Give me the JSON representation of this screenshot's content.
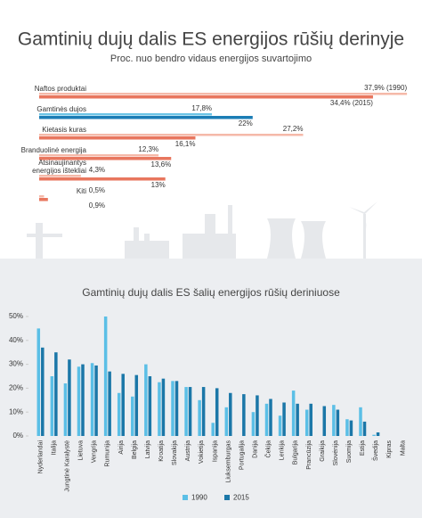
{
  "chart_data": [
    {
      "type": "hbar",
      "title": "Gamtinių dujų dalis ES energijos rūšių derinyje",
      "subtitle": "Proc. nuo bendro vidaus energijos suvartojimo",
      "categories": [
        "Naftos produktai",
        "Gamtinės dujos",
        "Kietasis kuras",
        "Branduolinė energija",
        "Atsinaujinantys\nenergijos ištekliai",
        "Kiti"
      ],
      "series": [
        {
          "values": [
            37.9,
            17.8,
            27.2,
            12.3,
            4.3,
            0.5
          ],
          "value_labels": [
            "37,9% (1990)",
            "17,8%",
            "27,2%",
            "12,3%",
            "4,3%",
            "0,5%"
          ],
          "colors": [
            "#f5b9a9",
            "#6cc4e6",
            "#f5b9a9",
            "#f5b9a9",
            "#f5b9a9",
            "#f5b9a9"
          ]
        },
        {
          "values": [
            34.4,
            22,
            16.1,
            13.6,
            13,
            0.9
          ],
          "value_labels": [
            "34,4% (2015)",
            "22%",
            "16,1%",
            "13,6%",
            "13%",
            "0,9%"
          ],
          "colors": [
            "#e8765e",
            "#1b7db5",
            "#e8765e",
            "#e8765e",
            "#e8765e",
            "#e8765e"
          ]
        }
      ]
    },
    {
      "type": "bar",
      "title": "Gamtinių dujų dalis ES šalių energijos rūšių deriniuose",
      "categories": [
        "Nyderlandai",
        "Italija",
        "Jungtinė Karalystė",
        "Lietuva",
        "Vengrija",
        "Rumunija",
        "Airija",
        "Belgija",
        "Latvija",
        "Kroatija",
        "Slovakija",
        "Austrija",
        "Vokietija",
        "Ispanija",
        "Liuksemburgas",
        "Portugalija",
        "Danija",
        "Čekija",
        "Lenkija",
        "Bulgarija",
        "Prancūzija",
        "Graikija",
        "Slovėnija",
        "Suomija",
        "Estija",
        "Švedija",
        "Kipras",
        "Malta"
      ],
      "series": [
        {
          "name": "1990",
          "color": "#5bbfe6",
          "values": [
            45,
            25,
            22,
            29,
            30.5,
            50,
            18,
            16.5,
            30,
            22.5,
            23,
            20.5,
            15,
            5.5,
            12,
            0,
            10,
            13.5,
            8.5,
            19,
            11,
            0,
            13,
            7,
            12,
            0.5,
            0,
            0
          ]
        },
        {
          "name": "2015",
          "color": "#1b77a8",
          "values": [
            37,
            35,
            32,
            30,
            29.5,
            27,
            26,
            25.5,
            25,
            24,
            23,
            20.5,
            20.5,
            20,
            18,
            17.5,
            17,
            15.5,
            14,
            13.5,
            13.5,
            12.5,
            11,
            6.5,
            6,
            1.5,
            0,
            0
          ]
        }
      ],
      "ylim": [
        0,
        50
      ],
      "yticks": [
        {
          "value": 0,
          "label": "0%"
        },
        {
          "value": 10,
          "label": "10%"
        },
        {
          "value": 20,
          "label": "20%"
        },
        {
          "value": 30,
          "label": "30%"
        },
        {
          "value": 40,
          "label": "40%"
        },
        {
          "value": 50,
          "label": "50%"
        }
      ],
      "legend": "bottom"
    }
  ]
}
